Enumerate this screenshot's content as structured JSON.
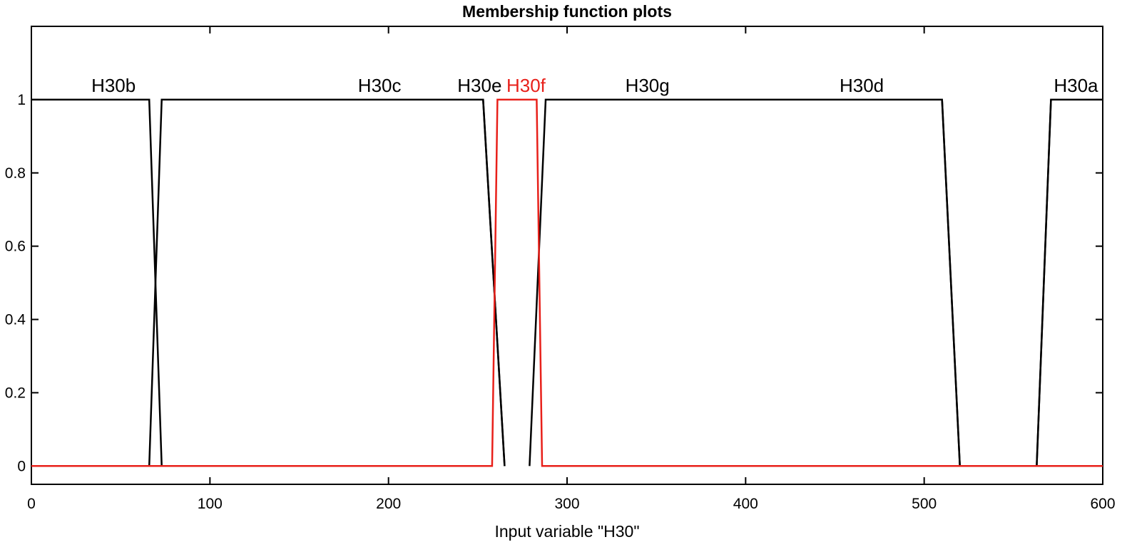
{
  "chart_data": {
    "type": "line",
    "title": "Membership function plots",
    "xlabel": "Input variable \"H30\"",
    "ylabel": "",
    "xlim": [
      0,
      600
    ],
    "ylim": [
      -0.05,
      1.2
    ],
    "xticks": [
      0,
      100,
      200,
      300,
      400,
      500,
      600
    ],
    "yticks": [
      0,
      0.2,
      0.4,
      0.6,
      0.8,
      1
    ],
    "ytick_labels": [
      "0",
      "0.2",
      "0.4",
      "0.6",
      "0.8",
      "1"
    ],
    "grid": false,
    "series": [
      {
        "name": "H30b",
        "color": "#000000",
        "label_x": 46,
        "x": [
          0,
          66,
          73
        ],
        "y": [
          1,
          1,
          0
        ]
      },
      {
        "name": "H30c",
        "color": "#000000",
        "label_x": 195,
        "x": [
          66,
          73,
          253,
          265
        ],
        "y": [
          0,
          1,
          1,
          0
        ]
      },
      {
        "name": "H30e",
        "color": "#000000",
        "label_x": 251,
        "x": [
          253,
          265
        ],
        "y": [
          1,
          0
        ]
      },
      {
        "name": "H30f",
        "color": "#e8201a",
        "label_x": 277,
        "x": [
          0,
          258,
          261,
          283,
          286,
          600
        ],
        "y": [
          0,
          0,
          1,
          1,
          0,
          0
        ]
      },
      {
        "name": "H30g",
        "color": "#000000",
        "label_x": 345,
        "x": [
          279,
          288,
          510,
          520
        ],
        "y": [
          0,
          1,
          1,
          0
        ]
      },
      {
        "name": "H30d",
        "color": "#000000",
        "label_x": 465,
        "x": [
          510,
          520,
          563,
          571
        ],
        "y": [
          1,
          0,
          0,
          1
        ]
      },
      {
        "name": "H30a",
        "color": "#000000",
        "label_x": 585,
        "x": [
          563,
          571,
          600
        ],
        "y": [
          0,
          1,
          1
        ]
      }
    ]
  }
}
